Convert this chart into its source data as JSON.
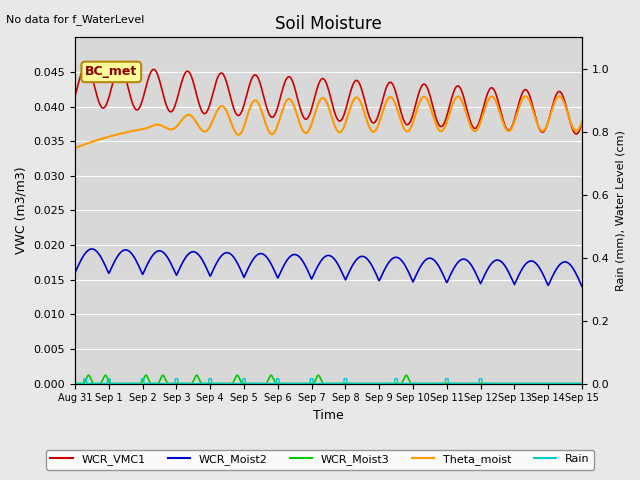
{
  "title": "Soil Moisture",
  "top_left_text": "No data for f_WaterLevel",
  "annotation_text": "BC_met",
  "ylabel_left": "VWC (m3/m3)",
  "ylabel_right": "Rain (mm), Water Level (cm)",
  "xlabel": "Time",
  "n_days": 15,
  "ylim_left": [
    0,
    0.05
  ],
  "ylim_right": [
    0.0,
    1.1
  ],
  "xtick_positions": [
    0,
    1,
    2,
    3,
    4,
    5,
    6,
    7,
    8,
    9,
    10,
    11,
    12,
    13,
    14,
    15
  ],
  "xtick_labels": [
    "Aug 31",
    "Sep 1",
    "Sep 2",
    "Sep 3",
    "Sep 4",
    "Sep 5",
    "Sep 6",
    "Sep 7",
    "Sep 8",
    "Sep 9",
    "Sep 10",
    "Sep 11",
    "Sep 12",
    "Sep 13",
    "Sep 14",
    "Sep 15"
  ],
  "yticks_left": [
    0.0,
    0.005,
    0.01,
    0.015,
    0.02,
    0.025,
    0.03,
    0.035,
    0.04,
    0.045
  ],
  "yticks_right": [
    0.0,
    0.2,
    0.4,
    0.6,
    0.8,
    1.0
  ],
  "colors": {
    "WCR_VMC1": "#cc0000",
    "WCR_Moist2": "#0000cc",
    "WCR_Moist3": "#00cc00",
    "Theta_moist": "#ff9900",
    "Rain": "#00cccc"
  },
  "legend_labels": [
    "WCR_VMC1",
    "WCR_Moist2",
    "WCR_Moist3",
    "Theta_moist",
    "Rain"
  ],
  "background_color": "#e8e8e8",
  "plot_bg_color": "#d8d8d8"
}
